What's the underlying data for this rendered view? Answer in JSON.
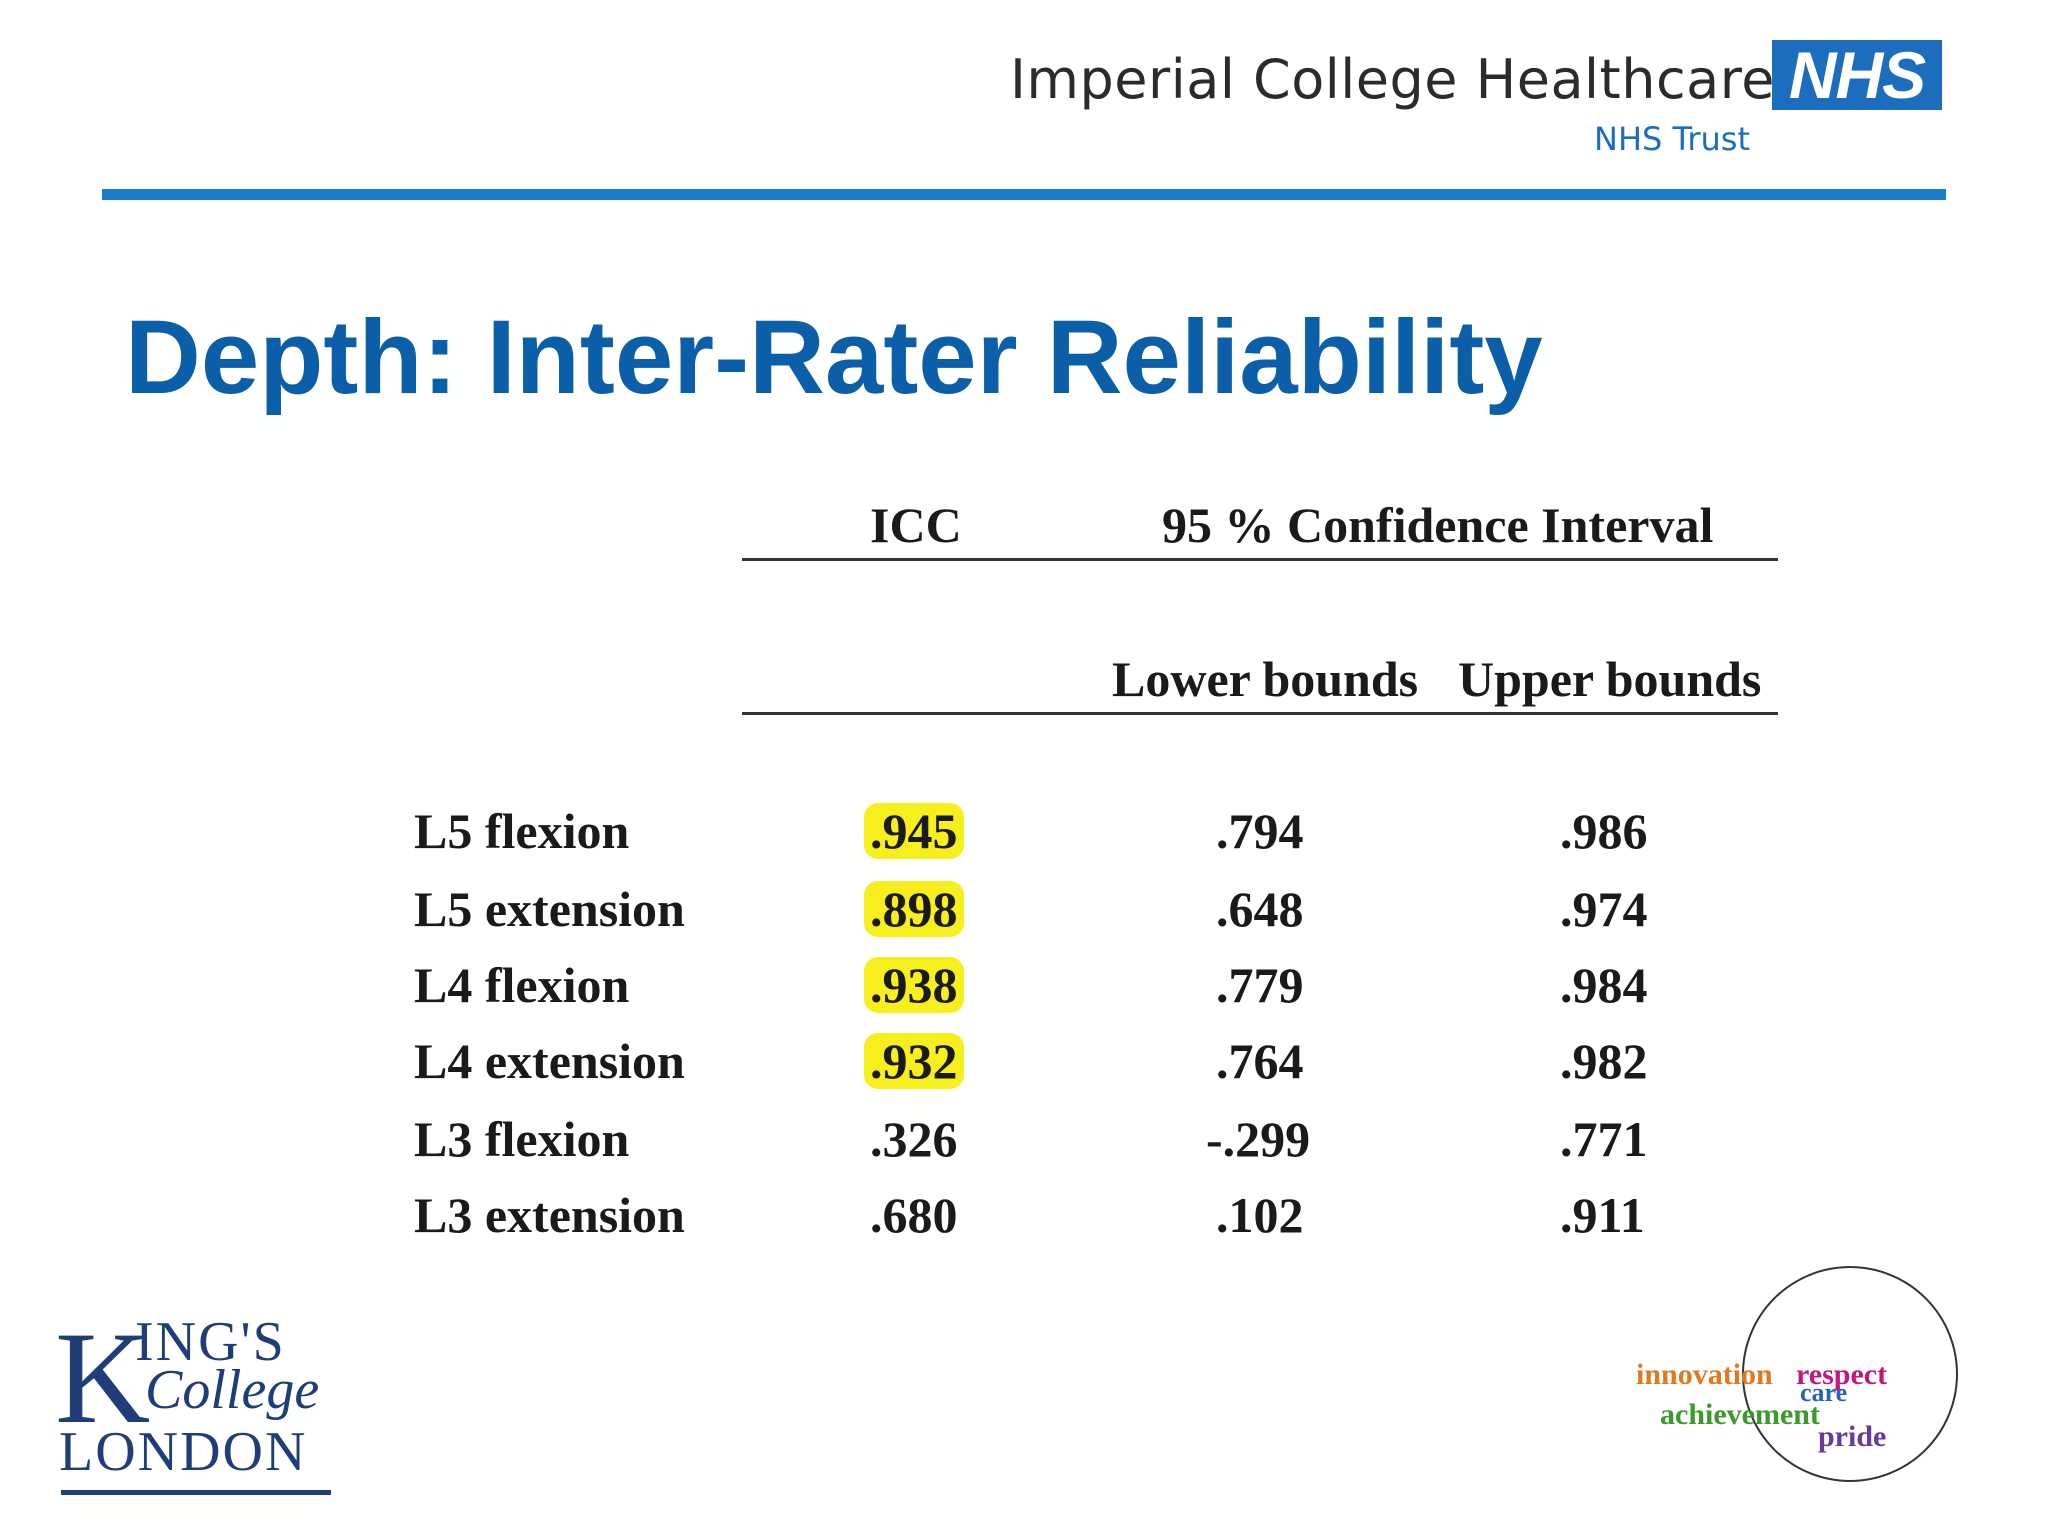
{
  "header": {
    "organization": "Imperial College Healthcare",
    "nhs_badge": "NHS",
    "trust": "NHS Trust",
    "rule_color": "#1a7dcc"
  },
  "title": "Depth: Inter-Rater Reliability",
  "table": {
    "headers": {
      "icc": "ICC",
      "ci": "95 % Confidence Interval",
      "lower": "Lower bounds",
      "upper": "Upper bounds"
    },
    "rows": [
      {
        "label": "L5 flexion",
        "icc": ".945",
        "lower": ".794",
        "upper": ".986",
        "highlight": true
      },
      {
        "label": "L5 extension",
        "icc": ".898",
        "lower": ".648",
        "upper": ".974",
        "highlight": true
      },
      {
        "label": "L4 flexion",
        "icc": ".938",
        "lower": ".779",
        "upper": ".984",
        "highlight": true
      },
      {
        "label": "L4 extension",
        "icc": ".932",
        "lower": ".764",
        "upper": ".982",
        "highlight": true
      },
      {
        "label": "L3 flexion",
        "icc": ".326",
        "lower": "-.299",
        "upper": ".771",
        "highlight": false
      },
      {
        "label": "L3 extension",
        "icc": ".680",
        "lower": ".102",
        "upper": ".911",
        "highlight": false
      }
    ],
    "highlight_color": "#f6ee1d"
  },
  "kcl_logo": {
    "k": "K",
    "ings": "ING'S",
    "college": "College",
    "london": "LONDON"
  },
  "values_logo": {
    "words": [
      "innovation",
      "respect",
      "care",
      "achievement",
      "pride"
    ],
    "colors": {
      "innovation": "#e07a1f",
      "respect": "#c2187a",
      "care": "#2a62b8",
      "achievement": "#3a9a2a",
      "pride": "#6a3a9a"
    }
  }
}
